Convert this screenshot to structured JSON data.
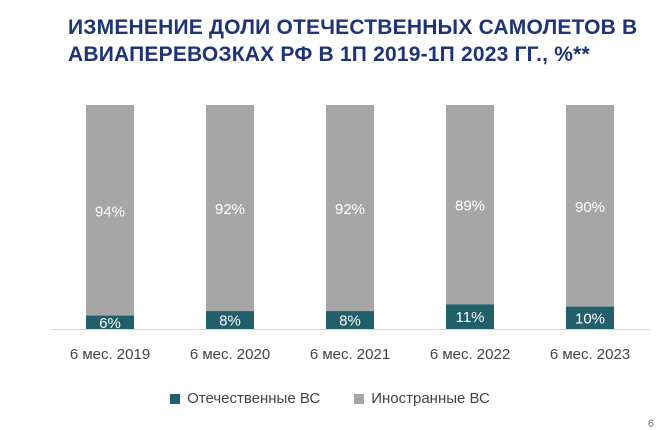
{
  "title_lines": [
    "ИЗМЕНЕНИЕ ДОЛИ ОТЕЧЕСТВЕННЫХ САМОЛЕТОВ В",
    "АВИАПЕРЕВОЗКАХ РФ В 1П 2019-1П 2023 ГГ., %**"
  ],
  "colors": {
    "title": "#1f3477",
    "domestic": "#21606b",
    "foreign": "#a6a6a6",
    "label_light": "#ffffff"
  },
  "legend": {
    "domestic_label": "Отечественные ВС",
    "foreign_label": "Иностранные ВС"
  },
  "page_corner": "6",
  "chart_data": {
    "type": "bar",
    "stacked": true,
    "categories": [
      "6 мес. 2019",
      "6 мес. 2020",
      "6 мес. 2021",
      "6 мес. 2022",
      "6 мес. 2023"
    ],
    "series": [
      {
        "name": "Отечественные ВС",
        "values": [
          6,
          8,
          8,
          11,
          10
        ],
        "labels": [
          "6%",
          "8%",
          "8%",
          "11%",
          "10%"
        ]
      },
      {
        "name": "Иностранные ВС",
        "values": [
          94,
          92,
          92,
          89,
          90
        ],
        "labels": [
          "94%",
          "92%",
          "92%",
          "89%",
          "90%"
        ]
      }
    ],
    "ylim": [
      0,
      100
    ],
    "grid": false,
    "legend_position": "bottom"
  }
}
